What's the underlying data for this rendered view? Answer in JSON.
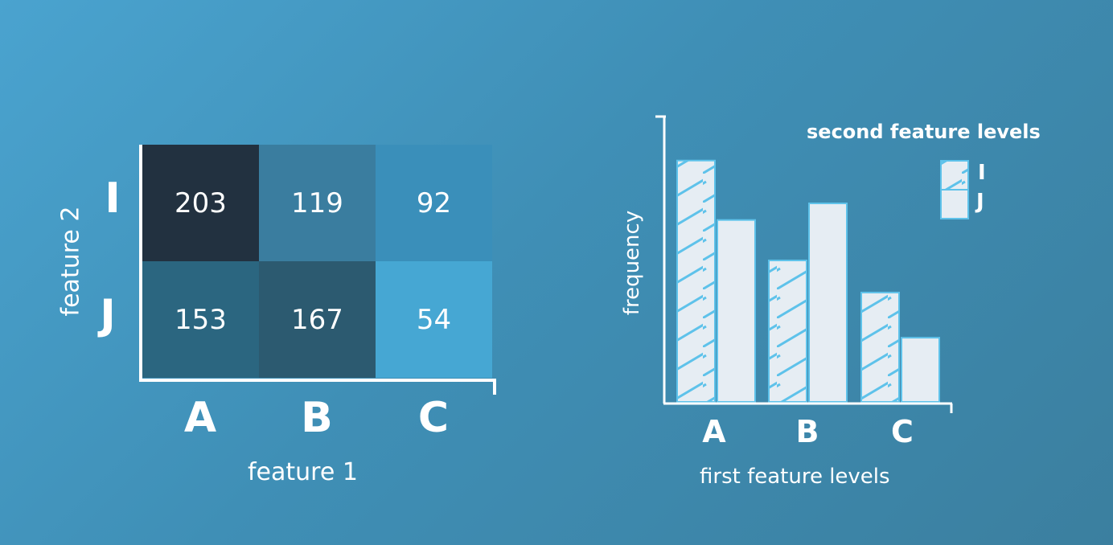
{
  "chart_data": [
    {
      "type": "heatmap",
      "xlabel": "feature 1",
      "ylabel": "feature 2",
      "x_categories": [
        "A",
        "B",
        "C"
      ],
      "y_categories": [
        "I",
        "J"
      ],
      "values": [
        [
          203,
          119,
          92
        ],
        [
          153,
          167,
          54
        ]
      ],
      "colors": [
        [
          "#223140",
          "#3a7d9f",
          "#3a8fba"
        ],
        [
          "#2b6680",
          "#2c5a70",
          "#46a7d3"
        ]
      ]
    },
    {
      "type": "bar",
      "xlabel": "first feature levels",
      "ylabel": "frequency",
      "categories": [
        "A",
        "B",
        "C"
      ],
      "legend_title": "second feature levels",
      "legend_position": "top-right",
      "series": [
        {
          "name": "I",
          "values": [
            203,
            119,
            92
          ],
          "pattern": "hatched"
        },
        {
          "name": "J",
          "values": [
            153,
            167,
            54
          ],
          "pattern": "solid"
        }
      ],
      "ylim": [
        0,
        240
      ],
      "colors": {
        "bar_fill": "#e6edf3",
        "bar_stroke": "#5ec2ea",
        "hatch": "#5ec2ea"
      }
    }
  ]
}
